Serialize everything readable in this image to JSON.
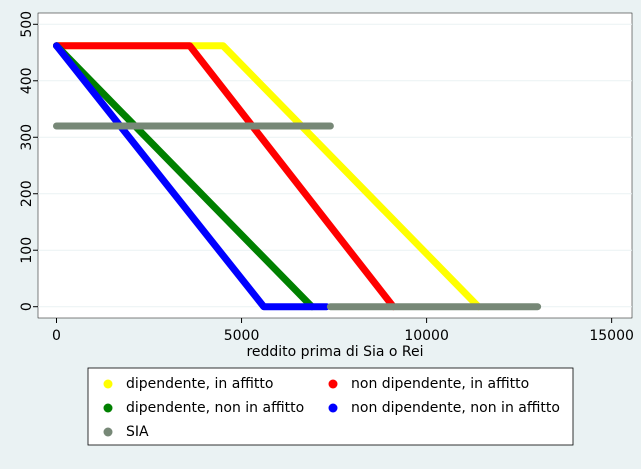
{
  "chart_data": {
    "type": "line",
    "x_label": "reddito prima di Sia o Rei",
    "xlim": [
      -500,
      15550
    ],
    "ylim": [
      -20,
      520
    ],
    "xticks": [
      0,
      5000,
      10000,
      15000
    ],
    "yticks": [
      0,
      100,
      200,
      300,
      400,
      500
    ],
    "grid": true,
    "series": [
      {
        "name": "dipendente, in affitto",
        "color": "#ffff00",
        "x": [
          0,
          4500,
          11400
        ],
        "values": [
          462,
          462,
          0
        ]
      },
      {
        "name": "non dipendente, in affitto",
        "color": "#ff0000",
        "x": [
          0,
          3600,
          9100
        ],
        "values": [
          462,
          462,
          0
        ]
      },
      {
        "name": "dipendente, non in affitto",
        "color": "#008000",
        "x": [
          0,
          6900
        ],
        "values": [
          462,
          0
        ]
      },
      {
        "name": "non dipendente, non in affitto",
        "color": "#0000ff",
        "x": [
          0,
          5600,
          7300
        ],
        "values": [
          462,
          0,
          0
        ]
      },
      {
        "name": "SIA",
        "color": "#778877",
        "x": [
          0,
          7400,
          7400,
          7400,
          13000
        ],
        "values": [
          320,
          320,
          null,
          0,
          0
        ]
      }
    ]
  }
}
